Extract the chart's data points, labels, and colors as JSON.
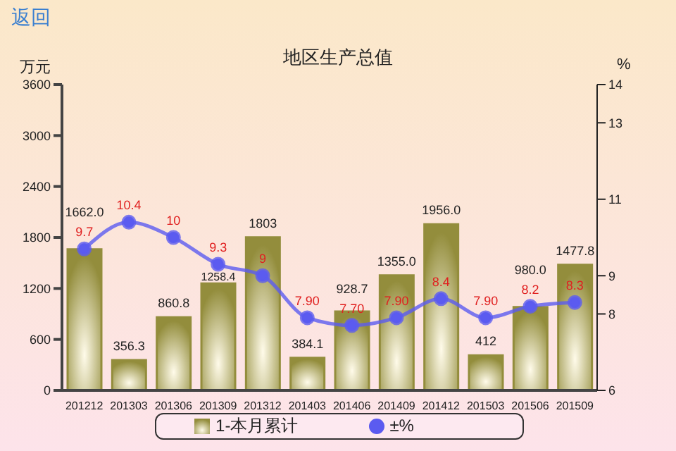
{
  "chart_data": {
    "type": "bar",
    "title": "地区生产总值",
    "ylabel": "万元",
    "y2label": "%",
    "annotations": [
      "返回"
    ],
    "categories": [
      "201212",
      "201303",
      "201306",
      "201309",
      "201312",
      "201403",
      "201406",
      "201409",
      "201412",
      "201503",
      "201506",
      "201509"
    ],
    "series": [
      {
        "name": "1-本月累计",
        "color": "#938d3c",
        "values": [
          1662.0,
          356.3,
          860.8,
          1258.4,
          1803,
          384.1,
          928.7,
          1355.0,
          1956.0,
          412,
          980.0,
          1477.8
        ],
        "value_labels": [
          "1662.0",
          "356.3",
          "860.8",
          "1258.4",
          "1803",
          "384.1",
          "928.7",
          "1355.0",
          "1956.0",
          "412",
          "980.0",
          "1477.8"
        ]
      },
      {
        "name": "±%",
        "type": "line",
        "axis": "y2",
        "color": "#5b5bf0",
        "values": [
          9.7,
          10.4,
          10,
          9.3,
          9,
          7.9,
          7.7,
          7.9,
          8.4,
          7.9,
          8.2,
          8.3
        ],
        "value_labels": [
          "9.7",
          "10.4",
          "10",
          "9.3",
          "9",
          "7.90",
          "7.70",
          "7.90",
          "8.4",
          "7.90",
          "8.2",
          "8.3"
        ]
      }
    ],
    "ylim": [
      0,
      3600
    ],
    "yticks": [
      0,
      600,
      1200,
      1800,
      2400,
      3000,
      3600
    ],
    "y2lim": [
      6,
      14
    ],
    "y2ticks": [
      6,
      8,
      9,
      11,
      13,
      14
    ],
    "marker": "circle",
    "grid": false,
    "legend": "bottom"
  }
}
